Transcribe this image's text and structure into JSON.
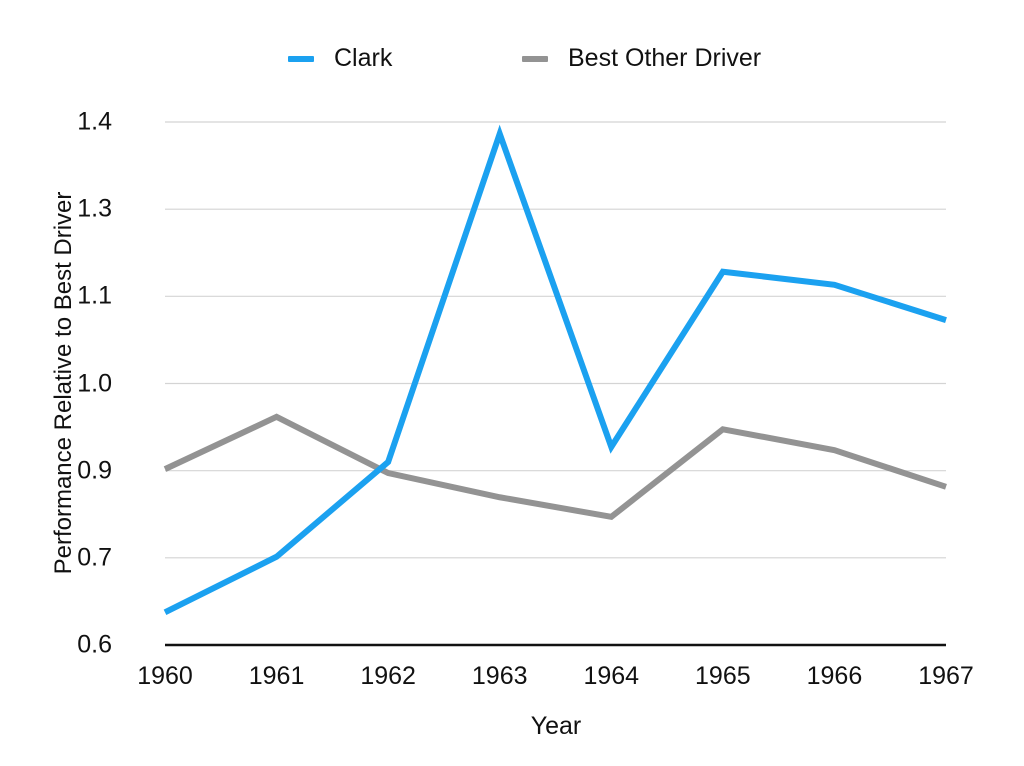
{
  "chart_data": {
    "type": "line",
    "title": "",
    "xlabel": "Year",
    "ylabel": "Performance Relative to Best Driver",
    "categories": [
      "1960",
      "1961",
      "1962",
      "1963",
      "1964",
      "1965",
      "1966",
      "1967"
    ],
    "series": [
      {
        "name": "Clark",
        "color": "#1BA1F0",
        "values": [
          0.65,
          0.735,
          0.88,
          1.382,
          0.903,
          1.171,
          1.151,
          1.097
        ]
      },
      {
        "name": "Best Other Driver",
        "color": "#939393",
        "values": [
          0.869,
          0.949,
          0.863,
          0.826,
          0.796,
          0.93,
          0.898,
          0.842
        ]
      }
    ],
    "yticks": [
      "0.6",
      "0.7",
      "0.9",
      "1.0",
      "1.1",
      "1.3",
      "1.4"
    ],
    "ylim": [
      0.6,
      1.4
    ],
    "grid": true,
    "legend_position": "top"
  },
  "colors": {
    "grid": "#d4d4d4",
    "axis": "#111111"
  }
}
